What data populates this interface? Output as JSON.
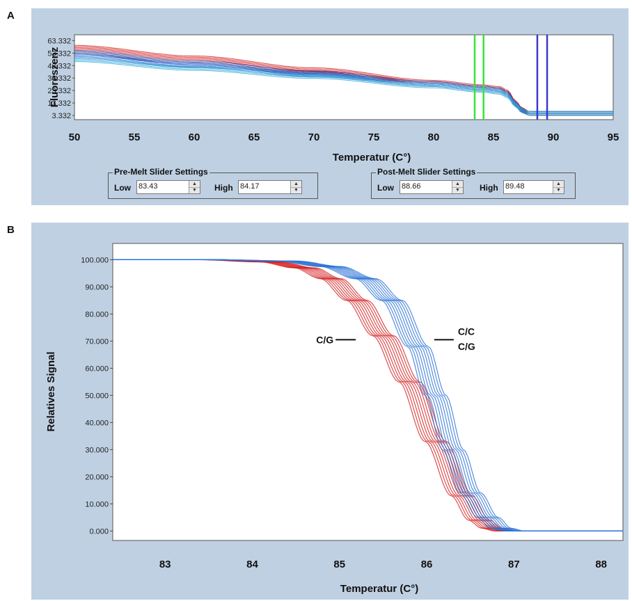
{
  "panels": {
    "a_label": "A",
    "b_label": "B"
  },
  "controls": {
    "pre_melt": {
      "title": "Pre-Melt Slider Settings",
      "low_label": "Low",
      "low_value": "83.43",
      "high_label": "High",
      "high_value": "84.17"
    },
    "post_melt": {
      "title": "Post-Melt Slider Settings",
      "low_label": "Low",
      "low_value": "88.66",
      "high_label": "High",
      "high_value": "89.48"
    }
  },
  "colors": {
    "red_series": "#d42020",
    "blue_series": "#2b72d6",
    "navy_series": "#2a2a8c",
    "cyan_series": "#35a9d8",
    "pre_melt_bars": "#39e239",
    "post_melt_bars": "#3838d0"
  },
  "chart_data": [
    {
      "type": "line",
      "panel": "A",
      "title": "",
      "xlabel": "Temperatur (C°)",
      "ylabel": "Fluoreszenz",
      "xlim": [
        50,
        95
      ],
      "ylim": [
        0,
        68
      ],
      "x_ticks": [
        "50",
        "55",
        "60",
        "65",
        "70",
        "75",
        "80",
        "85",
        "90",
        "95"
      ],
      "y_ticks": [
        "63.332",
        "53.332",
        "43.332",
        "33.332",
        "23.332",
        "13.332",
        "3.332"
      ],
      "grid": false,
      "series": [
        {
          "color": "#d42020",
          "x": [
            50,
            60,
            70,
            80,
            84,
            85.5,
            86.2,
            86.8,
            87.4,
            88,
            95
          ],
          "y": [
            58,
            49.5,
            40,
            30,
            26.5,
            25,
            22,
            14,
            8,
            5,
            5
          ]
        },
        {
          "color": "#2a2a8c",
          "x": [
            50,
            60,
            70,
            80,
            84,
            85.5,
            86.2,
            86.8,
            87.4,
            88,
            95
          ],
          "y": [
            54,
            45.5,
            37.5,
            29,
            25.5,
            24,
            21,
            13,
            7.5,
            5,
            5
          ]
        },
        {
          "color": "#2b72d6",
          "x": [
            50,
            60,
            70,
            80,
            84,
            85.5,
            86.2,
            86.8,
            87.4,
            88,
            95
          ],
          "y": [
            51,
            43.5,
            36,
            28,
            24.5,
            23,
            20,
            12.5,
            7,
            5,
            5
          ]
        },
        {
          "color": "#35a9d8",
          "x": [
            50,
            60,
            70,
            80,
            84,
            85.5,
            86.2,
            86.8,
            87.4,
            88,
            95
          ],
          "y": [
            48,
            41,
            34.5,
            27,
            23.5,
            22,
            19,
            12,
            7,
            5,
            5
          ]
        }
      ],
      "markers": [
        {
          "name": "pre-melt-low",
          "x": 83.43,
          "color": "#39e239"
        },
        {
          "name": "pre-melt-high",
          "x": 84.17,
          "color": "#39e239"
        },
        {
          "name": "post-melt-low",
          "x": 88.66,
          "color": "#3838d0"
        },
        {
          "name": "post-melt-high",
          "x": 89.48,
          "color": "#3838d0"
        }
      ]
    },
    {
      "type": "line",
      "panel": "B",
      "title": "",
      "xlabel": "Temperatur (C°)",
      "ylabel": "Relatives Signal",
      "xlim": [
        82.4,
        88.25
      ],
      "ylim": [
        -3.5,
        106
      ],
      "x_ticks": [
        "83",
        "84",
        "85",
        "86",
        "87",
        "88"
      ],
      "y_ticks": [
        "100.000",
        "90.000",
        "80.000",
        "70.000",
        "60.000",
        "50.000",
        "40.000",
        "30.000",
        "20.000",
        "10.000",
        "0.000"
      ],
      "grid": false,
      "series": [
        {
          "color": "#d42020",
          "x": [
            82.4,
            83.5,
            84.2,
            84.6,
            84.9,
            85.2,
            85.5,
            85.8,
            86.1,
            86.4,
            86.6,
            86.75,
            86.9,
            88.25
          ],
          "y": [
            100,
            100,
            99.2,
            97,
            93,
            85,
            72,
            55,
            33,
            13,
            4,
            1,
            0,
            0
          ]
        },
        {
          "color": "#2b72d6",
          "x": [
            82.4,
            83.5,
            84.4,
            84.9,
            85.3,
            85.6,
            85.9,
            86.1,
            86.3,
            86.5,
            86.7,
            86.85,
            87,
            88.25
          ],
          "y": [
            100,
            100,
            99.5,
            97.5,
            93,
            85,
            68,
            50,
            30,
            14,
            5,
            1,
            0,
            0
          ]
        }
      ],
      "annotations": [
        {
          "text": "C/G",
          "x": 85.25,
          "y": 70.5
        },
        {
          "text": "C/C",
          "x": 86.15,
          "y": 73.5
        },
        {
          "text": "C/G",
          "x": 86.15,
          "y": 68.0
        }
      ]
    }
  ]
}
